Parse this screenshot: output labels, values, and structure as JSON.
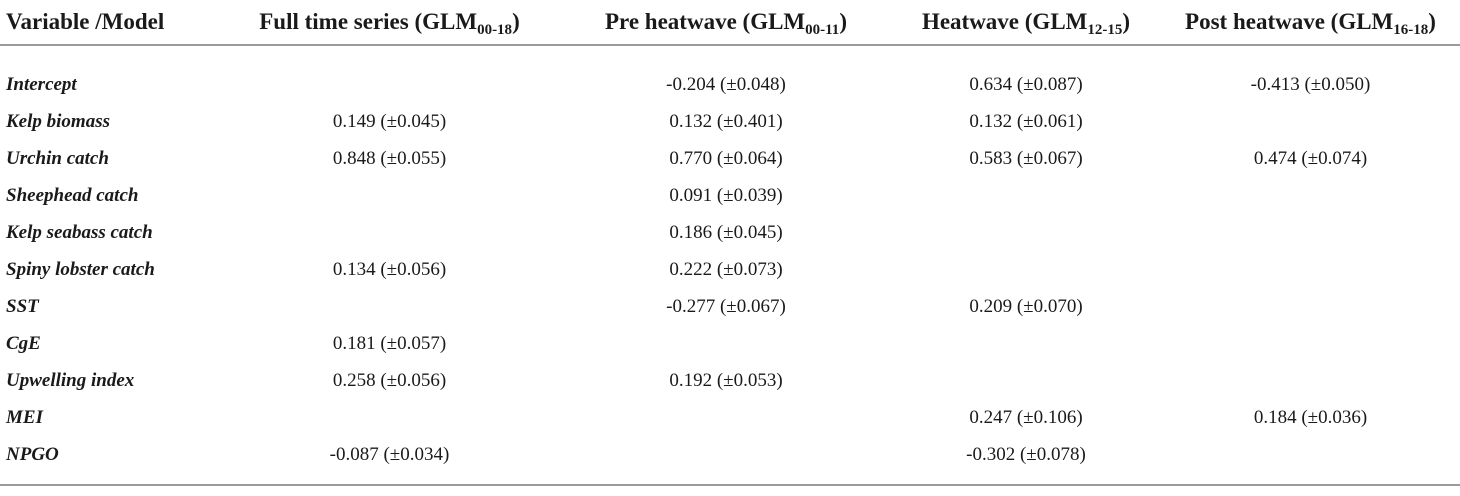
{
  "header": {
    "col0": "Variable /Model",
    "col1": {
      "label": "Full time series (GLM",
      "sub": "00-18",
      "close": ")"
    },
    "col2": {
      "label": "Pre heatwave (GLM",
      "sub": "00-11",
      "close": ")"
    },
    "col3": {
      "label": "Heatwave (GLM",
      "sub": "12-15",
      "close": ")"
    },
    "col4": {
      "label": "Post heatwave (GLM",
      "sub": "16-18",
      "close": ")"
    }
  },
  "rows": [
    {
      "variable": "Intercept",
      "full": "",
      "pre": "-0.204 (±0.048)",
      "heat": "0.634 (±0.087)",
      "post": "-0.413 (±0.050)"
    },
    {
      "variable": "Kelp biomass",
      "full": "0.149 (±0.045)",
      "pre": "0.132 (±0.401)",
      "heat": "0.132 (±0.061)",
      "post": ""
    },
    {
      "variable": "Urchin catch",
      "full": "0.848 (±0.055)",
      "pre": "0.770 (±0.064)",
      "heat": "0.583 (±0.067)",
      "post": "0.474 (±0.074)"
    },
    {
      "variable": "Sheephead catch",
      "full": "",
      "pre": "0.091 (±0.039)",
      "heat": "",
      "post": ""
    },
    {
      "variable": "Kelp seabass catch",
      "full": "",
      "pre": "0.186 (±0.045)",
      "heat": "",
      "post": ""
    },
    {
      "variable": "Spiny lobster catch",
      "full": "0.134 (±0.056)",
      "pre": "0.222 (±0.073)",
      "heat": "",
      "post": ""
    },
    {
      "variable": "SST",
      "full": "",
      "pre": "-0.277 (±0.067)",
      "heat": "0.209 (±0.070)",
      "post": ""
    },
    {
      "variable": "CgE",
      "full": "0.181 (±0.057)",
      "pre": "",
      "heat": "",
      "post": ""
    },
    {
      "variable": "Upwelling index",
      "full": "0.258 (±0.056)",
      "pre": "0.192 (±0.053)",
      "heat": "",
      "post": ""
    },
    {
      "variable": "MEI",
      "full": "",
      "pre": "",
      "heat": "0.247 (±0.106)",
      "post": "0.184 (±0.036)"
    },
    {
      "variable": "NPGO",
      "full": "-0.087 (±0.034)",
      "pre": "",
      "heat": "-0.302 (±0.078)",
      "post": ""
    }
  ]
}
